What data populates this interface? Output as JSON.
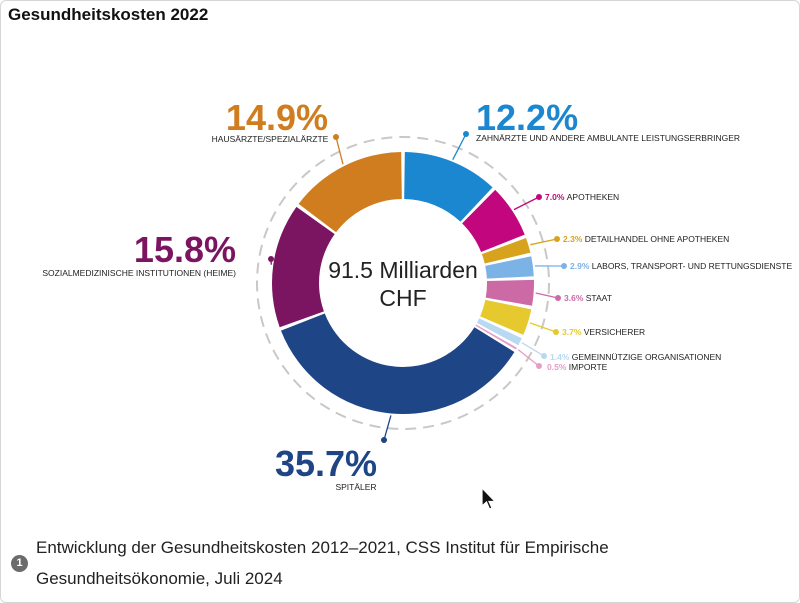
{
  "page": {
    "title": "Gesundheitskosten 2022",
    "caption": "Entwicklung der Gesundheitskosten 2012–2021, CSS Institut für Empirische Gesundheitsökonomie, Juli 2024",
    "footnote_number": "1"
  },
  "chart_data": {
    "type": "pie",
    "variant": "donut",
    "title": "Gesundheitskosten 2022",
    "center_label": [
      "91.5 Milliarden",
      "CHF"
    ],
    "slices": [
      {
        "label": "ZAHNÄRZTE UND ANDERE AMBULANTE LEISTUNGSERBRINGER",
        "value": 12.2,
        "display": "12.2%",
        "color": "#1a87d0"
      },
      {
        "label": "APOTHEKEN",
        "value": 7.0,
        "display": "7.0%",
        "color": "#c2077e"
      },
      {
        "label": "DETAILHANDEL OHNE APOTHEKEN",
        "value": 2.3,
        "display": "2.3%",
        "color": "#d8a31c"
      },
      {
        "label": "LABORS, TRANSPORT- UND RETTUNGSDIENSTE",
        "value": 2.9,
        "display": "2.9%",
        "color": "#7cb3e6"
      },
      {
        "label": "STAAT",
        "value": 3.6,
        "display": "3.6%",
        "color": "#cc6aa5"
      },
      {
        "label": "VERSICHERER",
        "value": 3.7,
        "display": "3.7%",
        "color": "#e6c92e"
      },
      {
        "label": "GEMEINNÜTZIGE ORGANISATIONEN",
        "value": 1.4,
        "display": "1.4%",
        "color": "#b9d8f2"
      },
      {
        "label": "IMPORTE",
        "value": 0.5,
        "display": "0.5%",
        "color": "#e79cc8"
      },
      {
        "label": "SPITÄLER",
        "value": 35.7,
        "display": "35.7%",
        "color": "#1e4585"
      },
      {
        "label": "SOZIALMEDIZINISCHE INSTITUTIONEN (HEIME)",
        "value": 15.8,
        "display": "15.8%",
        "color": "#7c1561"
      },
      {
        "label": "HAUSÄRZTE/SPEZIALÄRZTE",
        "value": 14.9,
        "display": "14.9%",
        "color": "#d07d20"
      }
    ]
  }
}
